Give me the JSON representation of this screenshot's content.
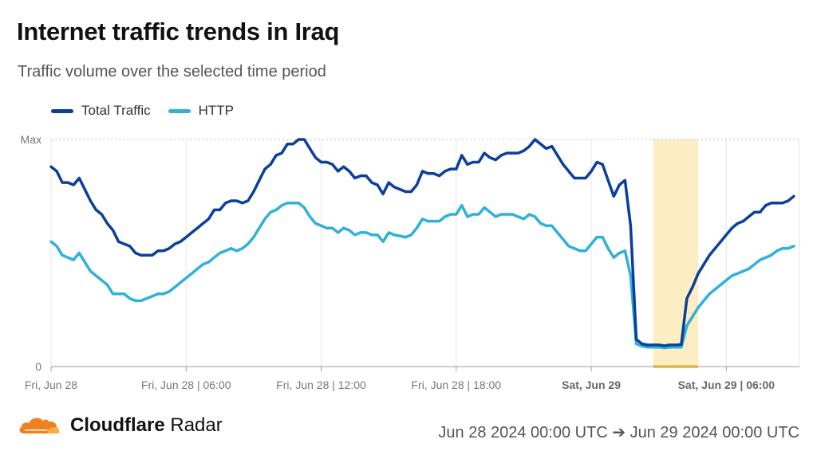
{
  "title": "Internet traffic trends in Iraq",
  "subtitle": "Traffic volume over the selected time period",
  "legend": [
    {
      "label": "Total Traffic",
      "color": "#0a3f9c"
    },
    {
      "label": "HTTP",
      "color": "#2fb1d9"
    }
  ],
  "footer": {
    "brand_bold": "Cloudflare",
    "brand_light": "Radar",
    "date_range": "Jun 28 2024 00:00 UTC ➔ Jun 29 2024 00:00 UTC",
    "logo_color": "#f38020"
  },
  "chart_data": {
    "type": "line",
    "x_unit": "hour",
    "y_ticks": [
      {
        "value": 0,
        "label": "0"
      },
      {
        "value": 100,
        "label": "Max"
      }
    ],
    "ylim": [
      0,
      100
    ],
    "xlim": [
      0,
      33.25
    ],
    "x_ticks": [
      {
        "value": 0,
        "label": "Fri, Jun 28",
        "bold": false
      },
      {
        "value": 6,
        "label": "Fri, Jun 28 | 06:00",
        "bold": false
      },
      {
        "value": 12,
        "label": "Fri, Jun 28 | 12:00",
        "bold": false
      },
      {
        "value": 18,
        "label": "Fri, Jun 28 | 18:00",
        "bold": false
      },
      {
        "value": 24,
        "label": "Sat, Jun 29",
        "bold": true
      },
      {
        "value": 30,
        "label": "Sat, Jun 29 | 06:00",
        "bold": true
      }
    ],
    "highlight": {
      "x_start": 26.75,
      "x_end": 28.75,
      "color": "#fdedc2",
      "edge_color": "#f9c846"
    },
    "series": [
      {
        "name": "Total Traffic",
        "color": "#0a3f9c",
        "points": [
          [
            0,
            88
          ],
          [
            0.25,
            86
          ],
          [
            0.5,
            81
          ],
          [
            0.75,
            81
          ],
          [
            1,
            80
          ],
          [
            1.25,
            83
          ],
          [
            1.5,
            78
          ],
          [
            1.75,
            73
          ],
          [
            2,
            69
          ],
          [
            2.25,
            67
          ],
          [
            2.5,
            63
          ],
          [
            2.75,
            60
          ],
          [
            3,
            55
          ],
          [
            3.25,
            54
          ],
          [
            3.5,
            53
          ],
          [
            3.75,
            50
          ],
          [
            4,
            49
          ],
          [
            4.25,
            49
          ],
          [
            4.5,
            49
          ],
          [
            4.75,
            51
          ],
          [
            5,
            51
          ],
          [
            5.25,
            52
          ],
          [
            5.5,
            54
          ],
          [
            5.75,
            55
          ],
          [
            6,
            57
          ],
          [
            6.25,
            59
          ],
          [
            6.5,
            61
          ],
          [
            6.75,
            63
          ],
          [
            7,
            65
          ],
          [
            7.25,
            69
          ],
          [
            7.5,
            69
          ],
          [
            7.75,
            72
          ],
          [
            8,
            73
          ],
          [
            8.25,
            73
          ],
          [
            8.5,
            72
          ],
          [
            8.75,
            73
          ],
          [
            9,
            77
          ],
          [
            9.25,
            82
          ],
          [
            9.5,
            87
          ],
          [
            9.75,
            89
          ],
          [
            10,
            93
          ],
          [
            10.25,
            94
          ],
          [
            10.5,
            98
          ],
          [
            10.75,
            98
          ],
          [
            11,
            100
          ],
          [
            11.25,
            100
          ],
          [
            11.5,
            96
          ],
          [
            11.75,
            92
          ],
          [
            12,
            90
          ],
          [
            12.25,
            90
          ],
          [
            12.5,
            89
          ],
          [
            12.75,
            86
          ],
          [
            13,
            88
          ],
          [
            13.25,
            86
          ],
          [
            13.5,
            83
          ],
          [
            13.75,
            84
          ],
          [
            14,
            84
          ],
          [
            14.25,
            81
          ],
          [
            14.5,
            80
          ],
          [
            14.75,
            76
          ],
          [
            15,
            81
          ],
          [
            15.25,
            79
          ],
          [
            15.75,
            77
          ],
          [
            16,
            77
          ],
          [
            16.25,
            80
          ],
          [
            16.5,
            86
          ],
          [
            16.75,
            85
          ],
          [
            17,
            85
          ],
          [
            17.25,
            84
          ],
          [
            17.5,
            86
          ],
          [
            17.75,
            87
          ],
          [
            18,
            87
          ],
          [
            18.25,
            93
          ],
          [
            18.5,
            89
          ],
          [
            18.75,
            90
          ],
          [
            19,
            90
          ],
          [
            19.25,
            94
          ],
          [
            19.5,
            92
          ],
          [
            19.75,
            91
          ],
          [
            20,
            93
          ],
          [
            20.25,
            94
          ],
          [
            20.5,
            94
          ],
          [
            20.75,
            94
          ],
          [
            21,
            95
          ],
          [
            21.25,
            97
          ],
          [
            21.5,
            100
          ],
          [
            21.75,
            98
          ],
          [
            22,
            96
          ],
          [
            22.25,
            97
          ],
          [
            22.5,
            93
          ],
          [
            22.75,
            89
          ],
          [
            23,
            86
          ],
          [
            23.25,
            83
          ],
          [
            23.5,
            83
          ],
          [
            23.75,
            83
          ],
          [
            24,
            86
          ],
          [
            24.25,
            90
          ],
          [
            24.5,
            89
          ],
          [
            24.75,
            82
          ],
          [
            25,
            75
          ],
          [
            25.25,
            80
          ],
          [
            25.5,
            82
          ],
          [
            25.75,
            62
          ],
          [
            26,
            12
          ],
          [
            26.25,
            10
          ],
          [
            26.5,
            9.5
          ],
          [
            26.75,
            9.5
          ],
          [
            27,
            9.5
          ],
          [
            27.25,
            9.2
          ],
          [
            27.5,
            9.5
          ],
          [
            27.75,
            9.5
          ],
          [
            28,
            9.7
          ],
          [
            28.25,
            30
          ],
          [
            28.5,
            35
          ],
          [
            28.75,
            41
          ],
          [
            29,
            45
          ],
          [
            29.25,
            49
          ],
          [
            29.5,
            52
          ],
          [
            29.75,
            55
          ],
          [
            30,
            58
          ],
          [
            30.25,
            61
          ],
          [
            30.5,
            63
          ],
          [
            30.75,
            64
          ],
          [
            31,
            66
          ],
          [
            31.25,
            68
          ],
          [
            31.5,
            68
          ],
          [
            31.75,
            71
          ],
          [
            32,
            72
          ],
          [
            32.25,
            72
          ],
          [
            32.5,
            72
          ],
          [
            32.75,
            73
          ],
          [
            33,
            75
          ]
        ]
      },
      {
        "name": "HTTP",
        "color": "#2fb1d9",
        "points": [
          [
            0,
            55
          ],
          [
            0.25,
            53
          ],
          [
            0.5,
            49
          ],
          [
            0.75,
            48
          ],
          [
            1,
            47
          ],
          [
            1.25,
            50
          ],
          [
            1.5,
            46
          ],
          [
            1.75,
            42
          ],
          [
            2,
            40
          ],
          [
            2.25,
            38
          ],
          [
            2.5,
            36
          ],
          [
            2.75,
            32
          ],
          [
            3,
            32
          ],
          [
            3.25,
            32
          ],
          [
            3.5,
            30
          ],
          [
            3.75,
            29
          ],
          [
            4,
            29
          ],
          [
            4.25,
            30
          ],
          [
            4.5,
            31
          ],
          [
            4.75,
            32
          ],
          [
            5,
            32
          ],
          [
            5.25,
            33
          ],
          [
            5.5,
            35
          ],
          [
            5.75,
            37
          ],
          [
            6,
            39
          ],
          [
            6.25,
            41
          ],
          [
            6.5,
            43
          ],
          [
            6.75,
            45
          ],
          [
            7,
            46
          ],
          [
            7.25,
            48
          ],
          [
            7.5,
            50
          ],
          [
            7.75,
            51
          ],
          [
            8,
            52
          ],
          [
            8.25,
            51
          ],
          [
            8.5,
            52
          ],
          [
            8.75,
            54
          ],
          [
            9,
            57
          ],
          [
            9.25,
            61
          ],
          [
            9.5,
            65
          ],
          [
            9.75,
            68
          ],
          [
            10,
            69
          ],
          [
            10.25,
            71
          ],
          [
            10.5,
            72
          ],
          [
            10.75,
            72
          ],
          [
            11,
            72
          ],
          [
            11.25,
            70
          ],
          [
            11.5,
            66
          ],
          [
            11.75,
            63
          ],
          [
            12,
            62
          ],
          [
            12.25,
            61
          ],
          [
            12.5,
            61
          ],
          [
            12.75,
            59
          ],
          [
            13,
            61
          ],
          [
            13.25,
            60
          ],
          [
            13.5,
            58
          ],
          [
            13.75,
            59
          ],
          [
            14,
            59
          ],
          [
            14.25,
            58
          ],
          [
            14.5,
            58
          ],
          [
            14.75,
            55
          ],
          [
            15,
            59
          ],
          [
            15.25,
            58
          ],
          [
            15.75,
            57
          ],
          [
            16,
            58
          ],
          [
            16.25,
            61
          ],
          [
            16.5,
            65
          ],
          [
            16.75,
            64
          ],
          [
            17,
            64
          ],
          [
            17.25,
            64
          ],
          [
            17.5,
            66
          ],
          [
            17.75,
            67
          ],
          [
            18,
            67
          ],
          [
            18.25,
            71
          ],
          [
            18.5,
            66
          ],
          [
            18.75,
            67
          ],
          [
            19,
            67
          ],
          [
            19.25,
            70
          ],
          [
            19.5,
            68
          ],
          [
            19.75,
            66
          ],
          [
            20,
            67
          ],
          [
            20.25,
            67
          ],
          [
            20.5,
            67
          ],
          [
            20.75,
            66
          ],
          [
            21,
            65
          ],
          [
            21.25,
            67
          ],
          [
            21.5,
            66
          ],
          [
            21.75,
            63
          ],
          [
            22,
            62
          ],
          [
            22.25,
            62
          ],
          [
            22.5,
            59
          ],
          [
            22.75,
            56
          ],
          [
            23,
            53
          ],
          [
            23.25,
            52
          ],
          [
            23.5,
            51
          ],
          [
            23.75,
            51
          ],
          [
            24,
            54
          ],
          [
            24.25,
            57
          ],
          [
            24.5,
            57
          ],
          [
            24.75,
            52
          ],
          [
            25,
            48
          ],
          [
            25.25,
            50
          ],
          [
            25.5,
            51
          ],
          [
            25.75,
            40
          ],
          [
            26,
            10
          ],
          [
            26.25,
            9
          ],
          [
            26.5,
            8.5
          ],
          [
            26.75,
            8.5
          ],
          [
            27,
            8.5
          ],
          [
            27.25,
            8.2
          ],
          [
            27.5,
            8.5
          ],
          [
            27.75,
            8.5
          ],
          [
            28,
            8.5
          ],
          [
            28.25,
            18
          ],
          [
            28.5,
            22
          ],
          [
            28.75,
            26
          ],
          [
            29,
            29
          ],
          [
            29.25,
            32
          ],
          [
            29.5,
            34
          ],
          [
            29.75,
            36
          ],
          [
            30,
            38
          ],
          [
            30.25,
            40
          ],
          [
            30.5,
            41
          ],
          [
            30.75,
            42
          ],
          [
            31,
            43
          ],
          [
            31.25,
            45
          ],
          [
            31.5,
            47
          ],
          [
            31.75,
            48
          ],
          [
            32,
            49
          ],
          [
            32.25,
            51
          ],
          [
            32.5,
            52
          ],
          [
            32.75,
            52
          ],
          [
            33,
            53
          ]
        ]
      }
    ]
  }
}
